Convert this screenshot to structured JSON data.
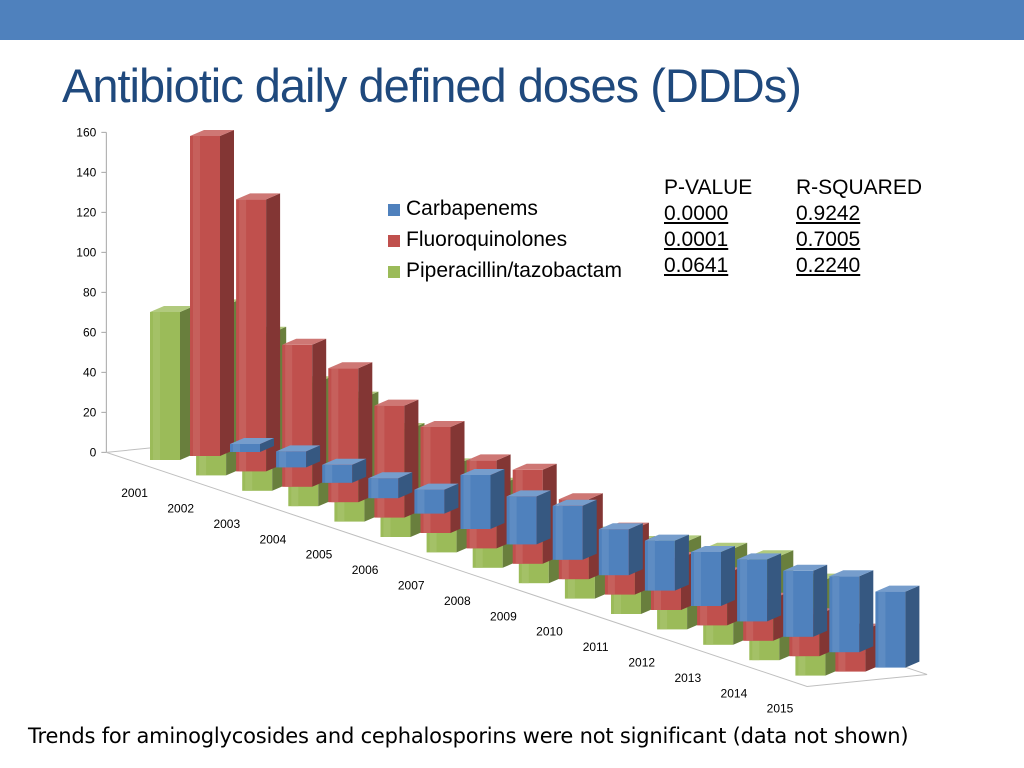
{
  "title": "Antibiotic daily defined doses (DDDs)",
  "footnote": "Trends for aminoglycosides and cephalosporins were not significant (data not shown)",
  "stats": {
    "headers": [
      "P-VALUE",
      "R-SQUARED"
    ],
    "rows": [
      {
        "p": "0.0000",
        "r2": "0.9242"
      },
      {
        "p": "0.0001",
        "r2": "0.7005"
      },
      {
        "p": "0.0641",
        "r2": "0.2240"
      }
    ]
  },
  "colors": {
    "top_bar": "#4f81bd",
    "title": "#1f497d",
    "carbapenems": "#4f81bd",
    "fluoroquinolones": "#c0504d",
    "piperacillin_tazobactam": "#9bbb59"
  },
  "chart_data": {
    "type": "bar",
    "style": "3d-clustered-depth",
    "categories": [
      "2001",
      "2002",
      "2003",
      "2004",
      "2005",
      "2006",
      "2007",
      "2008",
      "2009",
      "2010",
      "2011",
      "2012",
      "2013",
      "2014",
      "2015"
    ],
    "yticks": [
      "0",
      "20",
      "40",
      "60",
      "80",
      "100",
      "120",
      "140",
      "160"
    ],
    "ylim": [
      0,
      160
    ],
    "legend_position": "top-center",
    "series": [
      {
        "name": "Carbapenems",
        "color": "#4f81bd",
        "values": [
          4,
          8,
          9,
          10,
          12,
          27,
          24,
          27,
          23,
          25,
          27,
          31,
          33,
          38,
          38
        ]
      },
      {
        "name": "Fluoroquinolones",
        "color": "#c0504d",
        "values": [
          160,
          136,
          71,
          67,
          56,
          53,
          44,
          47,
          40,
          33,
          26,
          26,
          21,
          21,
          21
        ]
      },
      {
        "name": "Piperacillin/tazobactam",
        "color": "#9bbb59",
        "values": [
          74,
          85,
          79,
          62,
          62,
          54,
          44,
          42,
          34,
          33,
          36,
          44,
          48,
          52,
          48
        ]
      }
    ]
  }
}
